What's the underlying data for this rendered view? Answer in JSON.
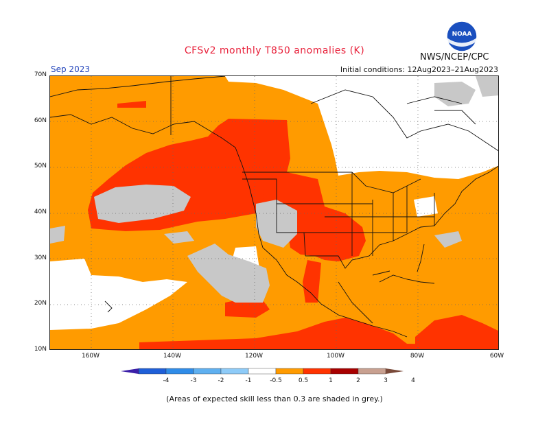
{
  "title": "CFSv2 monthly T850 anomalies (K)",
  "agency": "NWS/NCEP/CPC",
  "month_label": "Sep 2023",
  "initial_conditions": "Initial conditions: 12Aug2023–21Aug2023",
  "footnote": "(Areas of expected skill less than 0.3 are shaded in grey.)",
  "logo": {
    "name": "noaa-logo",
    "text": "NOAA"
  },
  "map": {
    "lat_labels": [
      "70N",
      "60N",
      "50N",
      "40N",
      "30N",
      "20N",
      "10N"
    ],
    "lon_labels": [
      "160W",
      "140W",
      "120W",
      "100W",
      "80W",
      "60W"
    ],
    "colors": {
      "background_anom": "#ff9b00",
      "strong_anom": "#ff3300",
      "neutral": "#ffffff",
      "low_skill": "#c8c8c8"
    }
  },
  "legend": {
    "tick_labels": [
      "-4",
      "-3",
      "-2",
      "-1",
      "-0.5",
      "0.5",
      "1",
      "2",
      "3",
      "4"
    ],
    "colors": [
      "#3b1fa8",
      "#1f5fd8",
      "#2f8ce8",
      "#5fb0f0",
      "#8ecbf8",
      "#ffffff",
      "#ff9b00",
      "#ff3300",
      "#a80000",
      "#c8a090",
      "#7a4a3a"
    ]
  }
}
